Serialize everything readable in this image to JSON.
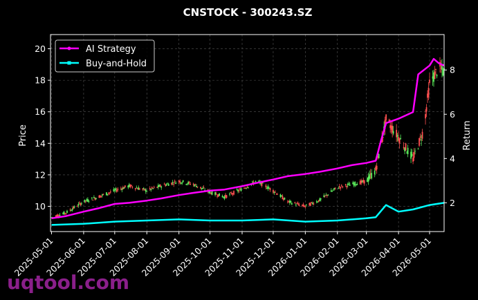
{
  "chart_data": {
    "type": "line",
    "title": "CNSTOCK - 300243.SZ",
    "ylabel": "Price",
    "y2label": "Return",
    "x_ticks": [
      "2025-05-01",
      "2025-06-01",
      "2025-07-01",
      "2025-08-01",
      "2025-09-01",
      "2025-10-01",
      "2025-11-01",
      "2025-12-01",
      "2026-01-01",
      "2026-02-01",
      "2026-03-01",
      "2026-04-01",
      "2026-05-01"
    ],
    "ylim": [
      8.4,
      20.9
    ],
    "y_ticks": [
      10,
      12,
      14,
      16,
      18,
      20
    ],
    "y2lim": [
      0.7,
      9.6
    ],
    "y2_ticks": [
      2,
      4,
      6,
      8
    ],
    "xlim": [
      "2025-04-30",
      "2026-05-15"
    ],
    "grid": true,
    "legend_position": "top-left",
    "candlestick_up_color": "#5cf05c",
    "candlestick_down_color": "#ff5050",
    "series": [
      {
        "name": "AI Strategy",
        "axis": "return",
        "color": "#ff00ff",
        "x": [
          "2025-05-01",
          "2025-05-15",
          "2025-06-01",
          "2025-06-15",
          "2025-07-01",
          "2025-07-15",
          "2025-08-01",
          "2025-08-15",
          "2025-09-01",
          "2025-09-15",
          "2025-10-01",
          "2025-10-15",
          "2025-11-01",
          "2025-11-15",
          "2025-12-01",
          "2025-12-15",
          "2026-01-01",
          "2026-01-15",
          "2026-02-01",
          "2026-02-15",
          "2026-03-01",
          "2026-03-10",
          "2026-03-15",
          "2026-03-20",
          "2026-04-01",
          "2026-04-15",
          "2026-04-20",
          "2026-05-01",
          "2026-05-05",
          "2026-05-10",
          "2026-05-15"
        ],
        "values": [
          1.3,
          1.4,
          1.6,
          1.75,
          1.95,
          2.0,
          2.1,
          2.2,
          2.35,
          2.45,
          2.55,
          2.6,
          2.75,
          2.9,
          3.05,
          3.2,
          3.3,
          3.4,
          3.55,
          3.7,
          3.8,
          3.9,
          4.8,
          5.6,
          5.8,
          6.1,
          7.8,
          8.2,
          8.5,
          8.3,
          8.2
        ]
      },
      {
        "name": "Buy-and-Hold",
        "axis": "return",
        "color": "#00ffff",
        "x": [
          "2025-05-01",
          "2025-06-01",
          "2025-07-01",
          "2025-08-01",
          "2025-09-01",
          "2025-10-01",
          "2025-11-01",
          "2025-12-01",
          "2026-01-01",
          "2026-02-01",
          "2026-03-01",
          "2026-03-10",
          "2026-03-20",
          "2026-04-01",
          "2026-04-15",
          "2026-05-01",
          "2026-05-15"
        ],
        "values": [
          1.0,
          1.05,
          1.15,
          1.2,
          1.25,
          1.2,
          1.2,
          1.25,
          1.15,
          1.2,
          1.3,
          1.35,
          1.9,
          1.6,
          1.7,
          1.9,
          2.0
        ]
      }
    ],
    "price_path": {
      "x": [
        "2025-05-01",
        "2025-05-15",
        "2025-06-01",
        "2025-06-15",
        "2025-07-01",
        "2025-07-15",
        "2025-08-01",
        "2025-08-15",
        "2025-09-01",
        "2025-09-15",
        "2025-10-01",
        "2025-10-15",
        "2025-11-01",
        "2025-11-15",
        "2025-12-01",
        "2025-12-15",
        "2026-01-01",
        "2026-01-15",
        "2026-02-01",
        "2026-02-15",
        "2026-03-01",
        "2026-03-10",
        "2026-03-20",
        "2026-04-01",
        "2026-04-15",
        "2026-04-25",
        "2026-05-01",
        "2026-05-10",
        "2026-05-15"
      ],
      "values": [
        9.3,
        9.6,
        10.3,
        10.6,
        11.0,
        11.3,
        11.0,
        11.3,
        11.6,
        11.4,
        10.9,
        10.6,
        11.1,
        11.6,
        11.0,
        10.3,
        10.0,
        10.4,
        11.2,
        11.4,
        11.6,
        12.3,
        15.5,
        14.4,
        13.0,
        14.8,
        17.8,
        18.8,
        18.5
      ]
    }
  },
  "watermark": "uqtool.com"
}
